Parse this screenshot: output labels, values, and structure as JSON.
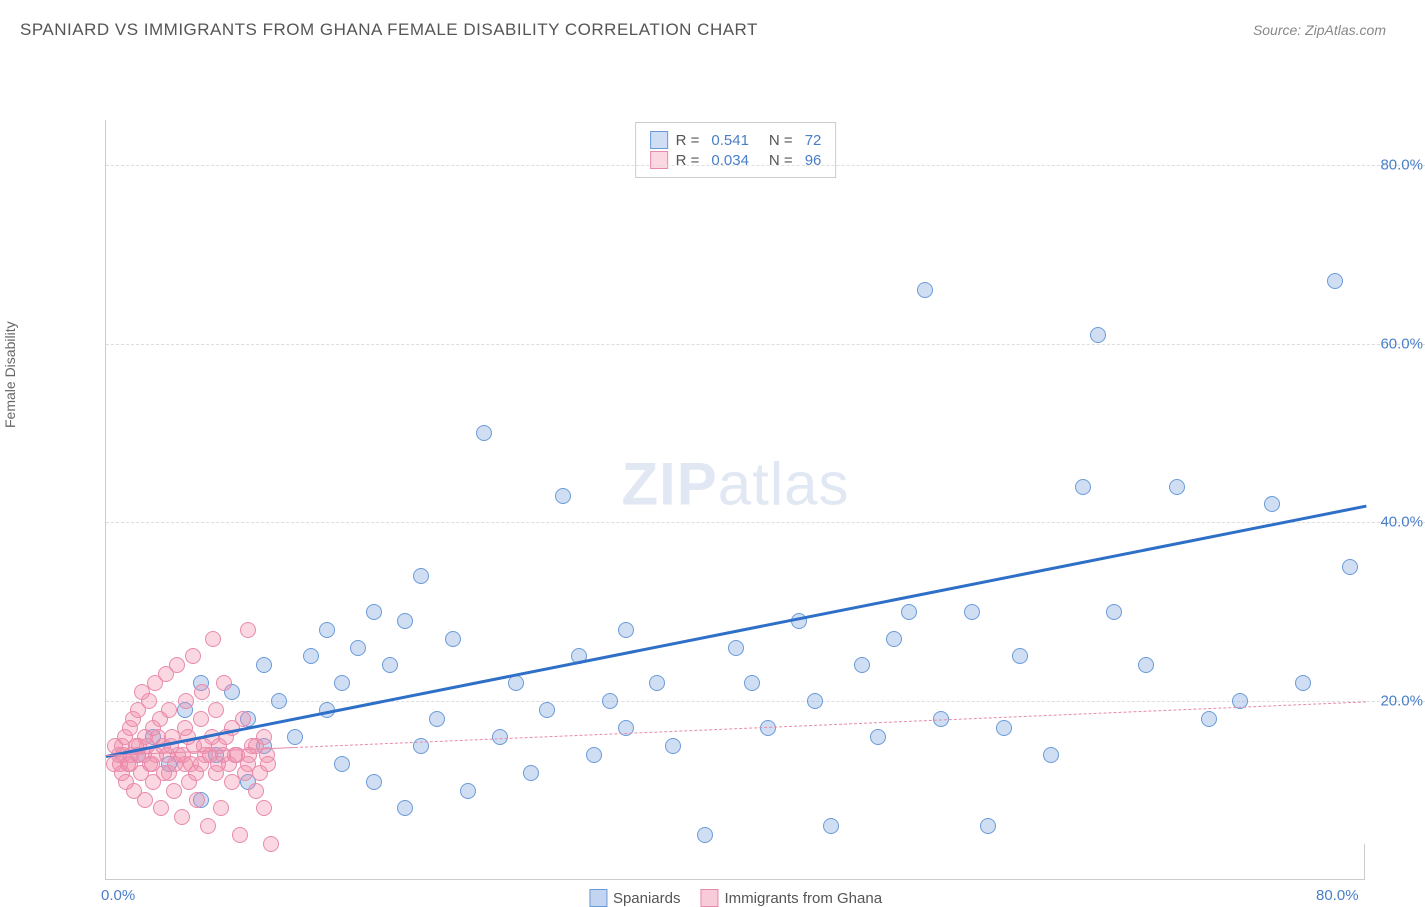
{
  "title": "SPANIARD VS IMMIGRANTS FROM GHANA FEMALE DISABILITY CORRELATION CHART",
  "source": "Source: ZipAtlas.com",
  "y_axis_label": "Female Disability",
  "watermark": {
    "bold": "ZIP",
    "light": "atlas"
  },
  "chart": {
    "type": "scatter",
    "xlim": [
      0,
      80
    ],
    "ylim": [
      0,
      85
    ],
    "background_color": "#ffffff",
    "grid_color": "#dddddd",
    "axis_color": "#cccccc",
    "x_ticks": [
      {
        "value": 0,
        "label": "0.0%"
      },
      {
        "value": 80,
        "label": "80.0%"
      }
    ],
    "y_ticks": [
      {
        "value": 20,
        "label": "20.0%"
      },
      {
        "value": 40,
        "label": "40.0%"
      },
      {
        "value": 60,
        "label": "60.0%"
      },
      {
        "value": 80,
        "label": "80.0%"
      }
    ],
    "tick_label_color": "#4a7ec8",
    "tick_label_fontsize": 15,
    "series": [
      {
        "name": "Spaniards",
        "marker_fill": "rgba(120,160,220,0.35)",
        "marker_stroke": "#6a9bd8",
        "marker_size": 16,
        "trend": {
          "x1": 0,
          "y1": 14,
          "x2": 80,
          "y2": 42,
          "color": "#2e6fc7",
          "width": 3,
          "dash": "solid"
        },
        "legend": {
          "r_label": "R =",
          "r_value": "0.541",
          "n_label": "N =",
          "n_value": "72"
        },
        "points": [
          [
            2,
            14
          ],
          [
            3,
            16
          ],
          [
            4,
            13
          ],
          [
            5,
            19
          ],
          [
            6,
            22
          ],
          [
            7,
            14
          ],
          [
            8,
            21
          ],
          [
            9,
            18
          ],
          [
            10,
            24
          ],
          [
            10,
            15
          ],
          [
            11,
            20
          ],
          [
            12,
            16
          ],
          [
            13,
            25
          ],
          [
            14,
            28
          ],
          [
            14,
            19
          ],
          [
            15,
            22
          ],
          [
            16,
            26
          ],
          [
            17,
            11
          ],
          [
            17,
            30
          ],
          [
            18,
            24
          ],
          [
            19,
            29
          ],
          [
            20,
            15
          ],
          [
            20,
            34
          ],
          [
            21,
            18
          ],
          [
            22,
            27
          ],
          [
            23,
            10
          ],
          [
            24,
            50
          ],
          [
            25,
            16
          ],
          [
            26,
            22
          ],
          [
            27,
            12
          ],
          [
            28,
            19
          ],
          [
            29,
            43
          ],
          [
            30,
            25
          ],
          [
            31,
            14
          ],
          [
            32,
            20
          ],
          [
            33,
            17
          ],
          [
            35,
            22
          ],
          [
            36,
            15
          ],
          [
            38,
            5
          ],
          [
            40,
            26
          ],
          [
            41,
            22
          ],
          [
            42,
            17
          ],
          [
            44,
            29
          ],
          [
            45,
            20
          ],
          [
            46,
            6
          ],
          [
            48,
            24
          ],
          [
            49,
            16
          ],
          [
            50,
            27
          ],
          [
            51,
            30
          ],
          [
            52,
            66
          ],
          [
            53,
            18
          ],
          [
            55,
            30
          ],
          [
            56,
            6
          ],
          [
            57,
            17
          ],
          [
            58,
            25
          ],
          [
            60,
            14
          ],
          [
            62,
            44
          ],
          [
            63,
            61
          ],
          [
            64,
            30
          ],
          [
            66,
            24
          ],
          [
            68,
            44
          ],
          [
            70,
            18
          ],
          [
            72,
            20
          ],
          [
            74,
            42
          ],
          [
            76,
            22
          ],
          [
            78,
            67
          ],
          [
            79,
            35
          ],
          [
            15,
            13
          ],
          [
            19,
            8
          ],
          [
            33,
            28
          ],
          [
            9,
            11
          ],
          [
            6,
            9
          ]
        ]
      },
      {
        "name": "Immigrants from Ghana",
        "marker_fill": "rgba(240,140,170,0.35)",
        "marker_stroke": "#e88aac",
        "marker_size": 16,
        "trend": {
          "x1": 0,
          "y1": 14,
          "x2": 80,
          "y2": 20,
          "color": "#e88aac",
          "width": 1,
          "dash": "dashed"
        },
        "trend_solid_until_x": 12,
        "legend": {
          "r_label": "R =",
          "r_value": "0.034",
          "n_label": "N =",
          "n_value": "96"
        },
        "points": [
          [
            0.5,
            13
          ],
          [
            0.8,
            14
          ],
          [
            1,
            15
          ],
          [
            1,
            12
          ],
          [
            1.2,
            16
          ],
          [
            1.3,
            11
          ],
          [
            1.5,
            17
          ],
          [
            1.5,
            13
          ],
          [
            1.7,
            18
          ],
          [
            1.8,
            10
          ],
          [
            2,
            14
          ],
          [
            2,
            19
          ],
          [
            2.1,
            15
          ],
          [
            2.2,
            12
          ],
          [
            2.3,
            21
          ],
          [
            2.5,
            16
          ],
          [
            2.5,
            9
          ],
          [
            2.7,
            20
          ],
          [
            2.8,
            13
          ],
          [
            3,
            17
          ],
          [
            3,
            11
          ],
          [
            3.1,
            22
          ],
          [
            3.2,
            14
          ],
          [
            3.4,
            18
          ],
          [
            3.5,
            8
          ],
          [
            3.6,
            15
          ],
          [
            3.8,
            23
          ],
          [
            4,
            12
          ],
          [
            4,
            19
          ],
          [
            4.2,
            16
          ],
          [
            4.3,
            10
          ],
          [
            4.5,
            24
          ],
          [
            4.6,
            14
          ],
          [
            4.8,
            7
          ],
          [
            5,
            17
          ],
          [
            5,
            13
          ],
          [
            5.1,
            20
          ],
          [
            5.3,
            11
          ],
          [
            5.5,
            25
          ],
          [
            5.6,
            15
          ],
          [
            5.8,
            9
          ],
          [
            6,
            18
          ],
          [
            6,
            13
          ],
          [
            6.1,
            21
          ],
          [
            6.3,
            14
          ],
          [
            6.5,
            6
          ],
          [
            6.7,
            16
          ],
          [
            6.8,
            27
          ],
          [
            7,
            12
          ],
          [
            7,
            19
          ],
          [
            7.2,
            15
          ],
          [
            7.3,
            8
          ],
          [
            7.5,
            22
          ],
          [
            7.8,
            13
          ],
          [
            8,
            17
          ],
          [
            8,
            11
          ],
          [
            8.2,
            14
          ],
          [
            8.5,
            5
          ],
          [
            8.7,
            18
          ],
          [
            9,
            28
          ],
          [
            9,
            13
          ],
          [
            9.3,
            15
          ],
          [
            9.5,
            10
          ],
          [
            9.8,
            12
          ],
          [
            10,
            16
          ],
          [
            10,
            8
          ],
          [
            10.2,
            14
          ],
          [
            10.5,
            4
          ],
          [
            1.1,
            14
          ],
          [
            1.4,
            13
          ],
          [
            1.9,
            15
          ],
          [
            2.4,
            14
          ],
          [
            2.9,
            13
          ],
          [
            3.3,
            16
          ],
          [
            3.7,
            12
          ],
          [
            4.1,
            15
          ],
          [
            4.4,
            13
          ],
          [
            4.9,
            14
          ],
          [
            5.2,
            16
          ],
          [
            5.7,
            12
          ],
          [
            6.2,
            15
          ],
          [
            6.6,
            14
          ],
          [
            7.1,
            13
          ],
          [
            7.6,
            16
          ],
          [
            8.3,
            14
          ],
          [
            8.8,
            12
          ],
          [
            9.5,
            15
          ],
          [
            0.6,
            15
          ],
          [
            0.9,
            13
          ],
          [
            1.6,
            14
          ],
          [
            2.6,
            15
          ],
          [
            3.9,
            14
          ],
          [
            5.4,
            13
          ],
          [
            7.4,
            14
          ],
          [
            9.1,
            14
          ],
          [
            10.3,
            13
          ]
        ]
      }
    ]
  },
  "legend_top_labels": {
    "r": "R =",
    "n": "N ="
  },
  "legend_bottom": [
    {
      "label": "Spaniards",
      "fill": "rgba(120,160,220,0.45)",
      "stroke": "#6a9bd8"
    },
    {
      "label": "Immigrants from Ghana",
      "fill": "rgba(240,140,170,0.45)",
      "stroke": "#e88aac"
    }
  ]
}
